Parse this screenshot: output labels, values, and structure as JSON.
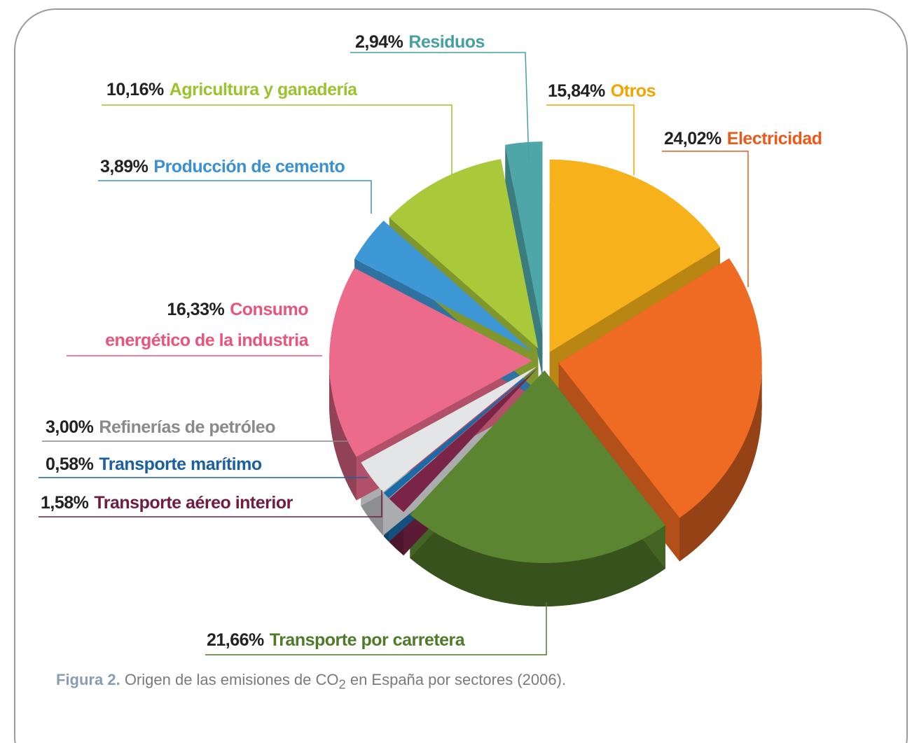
{
  "chart_data": {
    "type": "pie",
    "categories": [
      "Otros",
      "Electricidad",
      "Transporte por carretera",
      "Transporte aéreo interior",
      "Transporte marítimo",
      "Refinerías de petróleo",
      "Consumo energético de la industria",
      "Producción de cemento",
      "Agricultura y ganadería",
      "Residuos"
    ],
    "values": [
      15.84,
      24.02,
      21.66,
      1.58,
      0.58,
      3.0,
      16.33,
      3.89,
      10.16,
      2.94
    ],
    "value_labels": [
      "15,84%",
      "24,02%",
      "21,66%",
      "1,58%",
      "0,58%",
      "3,00%",
      "16,33%",
      "3,89%",
      "10,16%",
      "2,94%"
    ],
    "colors": [
      "#f7b21b",
      "#ef6a23",
      "#5b8530",
      "#7a2447",
      "#1b6aa8",
      "#e4e5e6",
      "#ec6a8a",
      "#3f98d6",
      "#a9c93a",
      "#4ea6a8"
    ],
    "label_colors": [
      "#f2a400",
      "#ea5a1a",
      "#4f7a2a",
      "#6e1d3e",
      "#1b5fa0",
      "#8a8a8a",
      "#e8557c",
      "#3a90d0",
      "#9cc230",
      "#45a0a3"
    ]
  },
  "caption": {
    "label": "Figura 2.",
    "text": "Origen de las emisiones de CO",
    "subscript": "2",
    "text_end": " en España por sectores (2006)."
  }
}
